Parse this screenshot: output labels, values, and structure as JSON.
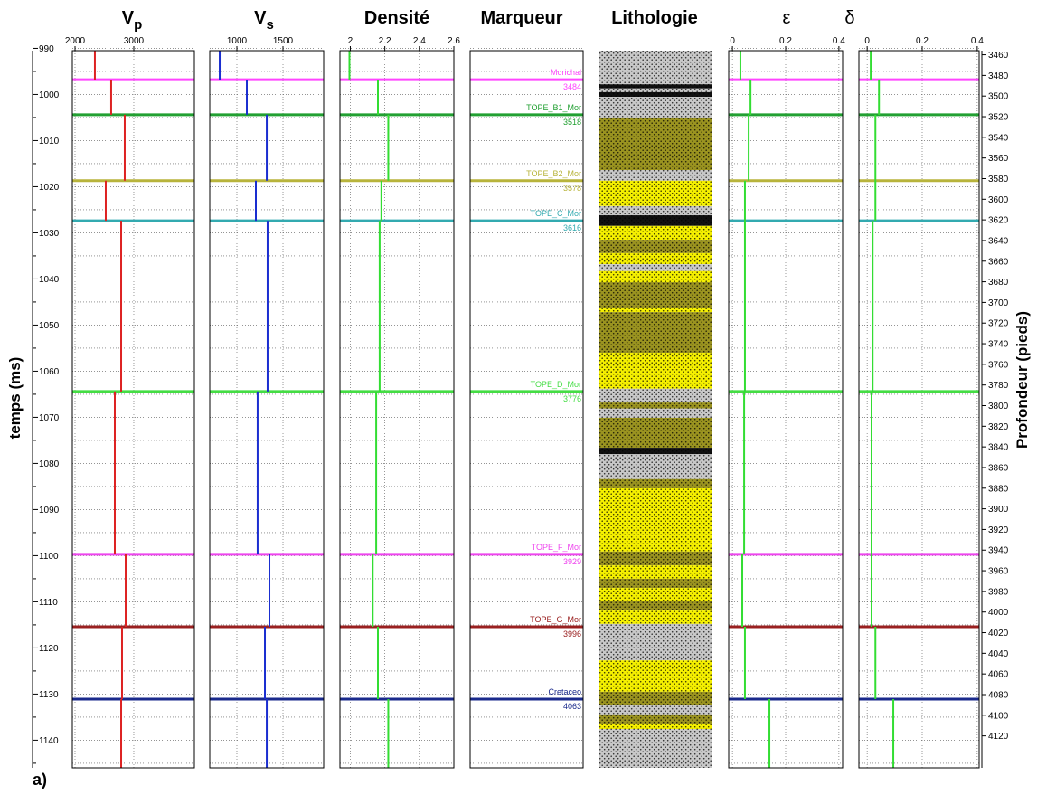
{
  "chart_data": {
    "type": "well-log",
    "panel_label": "a)",
    "time_axis": {
      "label": "temps (ms)",
      "ylim": [
        990.5,
        1146
      ],
      "yticks": [
        990,
        1000,
        1010,
        1020,
        1030,
        1040,
        1050,
        1060,
        1070,
        1080,
        1090,
        1100,
        1110,
        1120,
        1130,
        1140
      ],
      "minor_yticks": [
        995,
        1005,
        1015,
        1025,
        1035,
        1045,
        1055,
        1065,
        1075,
        1085,
        1095,
        1105,
        1115,
        1125,
        1135,
        1145
      ],
      "grid": true
    },
    "depth_axis": {
      "label": "Profondeur (pieds)",
      "y2lim": [
        3456,
        4151
      ],
      "y2ticks": [
        3460,
        3480,
        3500,
        3520,
        3540,
        3560,
        3580,
        3600,
        3620,
        3640,
        3660,
        3680,
        3700,
        3720,
        3740,
        3760,
        3780,
        3800,
        3820,
        3840,
        3860,
        3880,
        3900,
        3920,
        3940,
        3960,
        3980,
        4000,
        4020,
        4040,
        4060,
        4080,
        4100,
        4120
      ]
    },
    "markers": [
      {
        "name": "Morichal",
        "depth": 3484,
        "time": 996.8,
        "color": "#ff44ff"
      },
      {
        "name": "TOPE_B1_Mor",
        "depth": 3518,
        "time": 1004.4,
        "color": "#22a032"
      },
      {
        "name": "TOPE_B2_Mor",
        "depth": 3578,
        "time": 1018.7,
        "color": "#b8b43c"
      },
      {
        "name": "TOPE_C_Mor",
        "depth": 3616,
        "time": 1027.4,
        "color": "#33aab0"
      },
      {
        "name": "TOPE_D_Mor",
        "depth": 3776,
        "time": 1064.4,
        "color": "#44dd44"
      },
      {
        "name": "TOPE_F_Mor",
        "depth": 3929,
        "time": 1099.7,
        "color": "#ee44ee"
      },
      {
        "name": "TOPE_G_Mor",
        "depth": 3996,
        "time": 1115.4,
        "color": "#9a2020"
      },
      {
        "name": "Cretaceo",
        "depth": 4063,
        "time": 1131.1,
        "color": "#1a2a8c"
      }
    ],
    "tracks": [
      {
        "type": "step",
        "title": "V",
        "title_sub": "p",
        "color": "#dd2222",
        "xlim": [
          1954,
          4031
        ],
        "xticks": [
          2000,
          3000
        ],
        "values": [
          2338,
          2615,
          2846,
          2523,
          2785,
          2677,
          2862,
          2800,
          2785
        ]
      },
      {
        "type": "step",
        "title": "V",
        "title_sub": "s",
        "color": "#1a2ed0",
        "xlim": [
          706,
          1941
        ],
        "xticks": [
          1000,
          1500
        ],
        "values": [
          814,
          1108,
          1324,
          1206,
          1333,
          1225,
          1353,
          1304,
          1324
        ]
      },
      {
        "type": "step",
        "title": "Densité",
        "color": "#33dd33",
        "xlim": [
          1.94,
          2.6
        ],
        "xticks": [
          2,
          2.2,
          2.4,
          2.6
        ],
        "values": [
          1.995,
          2.16,
          2.22,
          2.18,
          2.17,
          2.15,
          2.13,
          2.16,
          2.22
        ]
      },
      {
        "type": "markers",
        "title": "Marqueur"
      },
      {
        "type": "lithology",
        "title": "Lithologie",
        "bounds": [
          990.5,
          997.8,
          998.7,
          999.5,
          1000.5,
          1005.0,
          1016.4,
          1018.7,
          1024.2,
          1026.2,
          1028.5,
          1031.5,
          1034.4,
          1036.8,
          1038.3,
          1040.7,
          1046.2,
          1047.2,
          1056.0,
          1063.8,
          1066.8,
          1068.1,
          1070.1,
          1076.6,
          1078.0,
          1083.4,
          1085.4,
          1099.1,
          1102.1,
          1105.0,
          1107.0,
          1109.9,
          1111.9,
          1114.8,
          1122.7,
          1129.5,
          1132.5,
          1134.4,
          1136.4,
          1137.6,
          1146.0
        ],
        "colors": [
          "#c8c8c8",
          "#111111",
          "#c8c8c8",
          "#111111",
          "#c8c8c8",
          "#9a9320",
          "#c8c8c8",
          "#f5f000",
          "#c8c8c8",
          "#111111",
          "#f5f000",
          "#9a9320",
          "#f5f000",
          "#c8c8c8",
          "#f5f000",
          "#9a9320",
          "#f5f000",
          "#9a9320",
          "#f5f000",
          "#c8c8c8",
          "#9a9320",
          "#c8c8c8",
          "#9a9320",
          "#111111",
          "#c8c8c8",
          "#9a9320",
          "#f5f000",
          "#9a9320",
          "#f5f000",
          "#9a9320",
          "#f5f000",
          "#9a9320",
          "#f5f000",
          "#c8c8c8",
          "#f5f000",
          "#9a9320",
          "#c8c8c8",
          "#9a9320",
          "#f5f000",
          "#c8c8c8"
        ]
      },
      {
        "type": "step",
        "title": "ε",
        "color": "#33dd33",
        "xlim": [
          -0.014,
          0.414
        ],
        "xticks": [
          0,
          0.2,
          0.4
        ],
        "values": [
          0.03,
          0.068,
          0.061,
          0.047,
          0.047,
          0.044,
          0.037,
          0.047,
          0.139
        ]
      },
      {
        "type": "step",
        "title": "δ",
        "color": "#33dd33",
        "xlim": [
          -0.03,
          0.407
        ],
        "xticks": [
          0,
          0.2,
          0.4
        ],
        "values": [
          0.013,
          0.043,
          0.03,
          0.03,
          0.02,
          0.016,
          0.016,
          0.03,
          0.095
        ]
      }
    ]
  }
}
